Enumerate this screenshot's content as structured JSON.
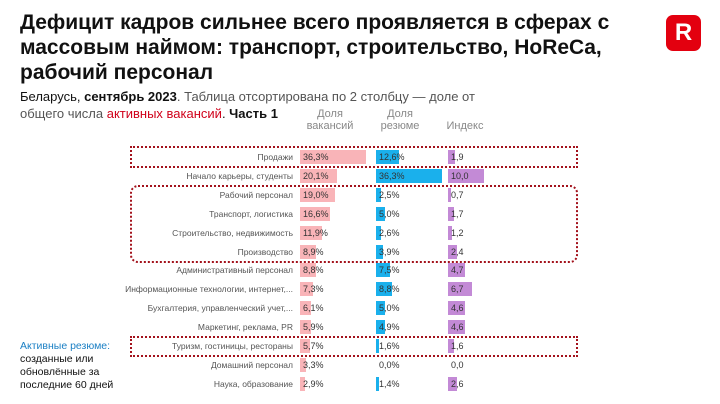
{
  "title": "Дефицит кадров сильнее всего проявляется в сферах с массовым наймом: транспорт, строительство, HoReCa, рабочий персонал",
  "logo": "R",
  "subtitle": {
    "p1": "Беларусь, ",
    "p2": "сентябрь 2023",
    "p3": ". Таблица отсортирована по 2 столбцу — доле от общего числа ",
    "p4": "активных вакансий",
    "p5": ". ",
    "p6": "Часть 1"
  },
  "note": {
    "title": "Активные резюме:",
    "text": "созданные или обновлённые за последние 60 дней"
  },
  "colors": {
    "vacancies": "#f9b4b8",
    "resumes": "#1ab0ec",
    "index": "#c38ad6",
    "highlight": "#a3121c",
    "brand": "#e3000f"
  },
  "chart_data": {
    "type": "table",
    "columns": [
      "Доля вакансий",
      "Доля резюме",
      "Индекс"
    ],
    "categories": [
      "Продажи",
      "Начало карьеры, студенты",
      "Рабочий персонал",
      "Транспорт, логистика",
      "Строительство, недвижимость",
      "Производство",
      "Административный персонал",
      "Информационные технологии, интернет,...",
      "Бухгалтерия, управленческий учет,...",
      "Маркетинг, реклама, PR",
      "Туризм, гостиницы, рестораны",
      "Домашний персонал",
      "Наука, образование"
    ],
    "series": [
      {
        "name": "Доля вакансий",
        "values": [
          36.3,
          20.1,
          19.0,
          16.6,
          11.9,
          8.9,
          8.8,
          7.3,
          6.1,
          5.9,
          5.7,
          3.3,
          2.9
        ],
        "format": "pct"
      },
      {
        "name": "Доля резюме",
        "values": [
          12.6,
          36.3,
          2.5,
          5.0,
          2.6,
          3.9,
          7.5,
          8.8,
          5.0,
          4.9,
          1.6,
          0.0,
          1.4
        ],
        "format": "pct"
      },
      {
        "name": "Индекс",
        "values": [
          1.9,
          10.0,
          0.7,
          1.7,
          1.2,
          2.4,
          4.7,
          6.7,
          4.6,
          4.6,
          1.6,
          0.0,
          2.6
        ],
        "format": "num"
      }
    ],
    "highlighted_groups": [
      [
        0
      ],
      [
        2,
        3,
        4,
        5
      ],
      [
        10
      ]
    ]
  }
}
